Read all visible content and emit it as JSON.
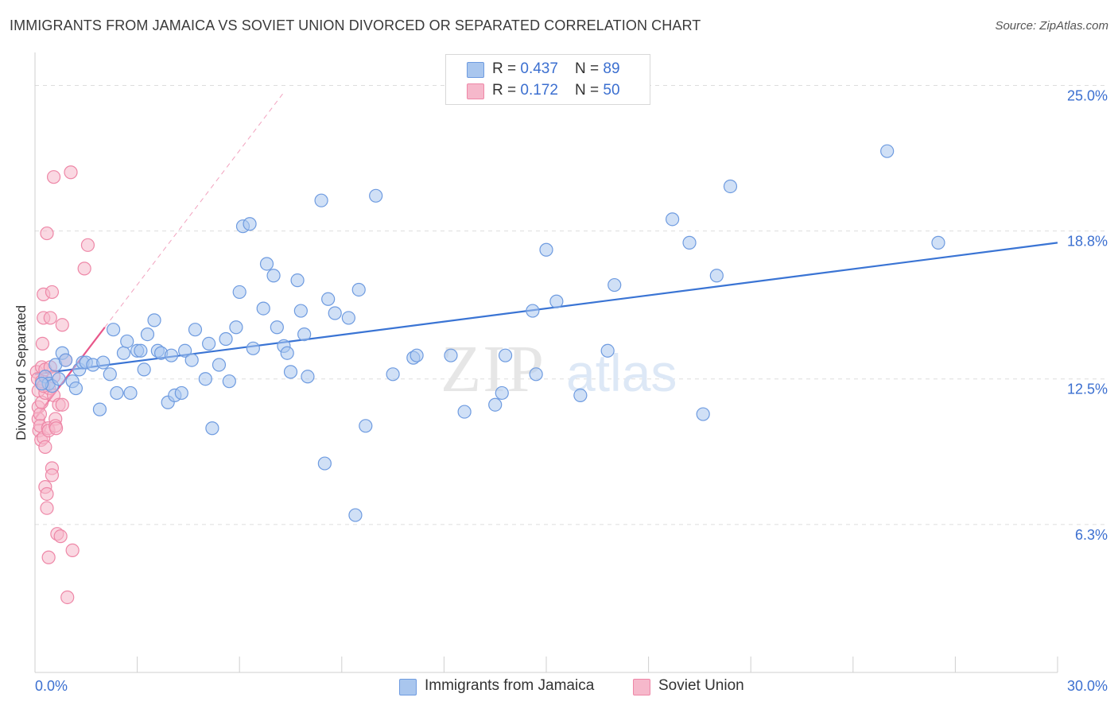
{
  "title": "IMMIGRANTS FROM JAMAICA VS SOVIET UNION DIVORCED OR SEPARATED CORRELATION CHART",
  "source": "Source: ZipAtlas.com",
  "watermark": {
    "zip": "ZIP",
    "atlas": "atlas"
  },
  "colors": {
    "blue_fill": "#a9c6ee",
    "blue_stroke": "#6e9be0",
    "blue_line": "#3a74d4",
    "pink_fill": "#f6b8cb",
    "pink_stroke": "#ee87a7",
    "pink_line": "#e8578a",
    "axis_label": "#3b6fd0",
    "grid": "#dddddd"
  },
  "legend": {
    "rows": [
      {
        "r_label": "R = ",
        "r_value": "0.437",
        "n_label": "N = ",
        "n_value": "89",
        "color": "#a9c6ee",
        "stroke": "#6e9be0"
      },
      {
        "r_label": "R = ",
        "r_value": "0.172",
        "n_label": "N = ",
        "n_value": "50",
        "color": "#f6b8cb",
        "stroke": "#ee87a7"
      }
    ]
  },
  "chart_data": {
    "type": "scatter",
    "title": "IMMIGRANTS FROM JAMAICA VS SOVIET UNION DIVORCED OR SEPARATED CORRELATION CHART",
    "xlabel": "",
    "ylabel": "Divorced or Separated",
    "xlim": [
      0,
      30
    ],
    "ylim": [
      0,
      26.2
    ],
    "x_tick_labels": [
      "0.0%",
      "30.0%"
    ],
    "y_ticks": [
      6.3,
      12.5,
      18.8,
      25.0
    ],
    "y_tick_labels": [
      "6.3%",
      "12.5%",
      "18.8%",
      "25.0%"
    ],
    "grid": "horizontal dashed",
    "legend_position": "top-center",
    "series": [
      {
        "name": "Immigrants from Jamaica",
        "color": "#a9c6ee",
        "points": [
          [
            0.3,
            12.6
          ],
          [
            0.4,
            12.3
          ],
          [
            0.5,
            12.2
          ],
          [
            0.6,
            13.1
          ],
          [
            0.7,
            12.5
          ],
          [
            0.8,
            13.6
          ],
          [
            0.9,
            13.3
          ],
          [
            1.1,
            12.4
          ],
          [
            1.2,
            12.1
          ],
          [
            1.3,
            12.9
          ],
          [
            1.4,
            13.2
          ],
          [
            1.5,
            13.2
          ],
          [
            1.7,
            13.1
          ],
          [
            1.9,
            11.2
          ],
          [
            2.0,
            13.2
          ],
          [
            2.2,
            12.7
          ],
          [
            2.3,
            14.6
          ],
          [
            2.4,
            11.9
          ],
          [
            2.6,
            13.6
          ],
          [
            2.7,
            14.1
          ],
          [
            2.8,
            11.9
          ],
          [
            3.0,
            13.7
          ],
          [
            3.1,
            13.7
          ],
          [
            3.2,
            12.9
          ],
          [
            3.3,
            14.4
          ],
          [
            3.5,
            15.0
          ],
          [
            3.6,
            13.7
          ],
          [
            3.7,
            13.6
          ],
          [
            3.9,
            11.5
          ],
          [
            4.0,
            13.5
          ],
          [
            4.1,
            11.8
          ],
          [
            4.3,
            11.9
          ],
          [
            4.4,
            13.7
          ],
          [
            4.6,
            13.3
          ],
          [
            4.7,
            14.6
          ],
          [
            5.0,
            12.5
          ],
          [
            5.1,
            14.0
          ],
          [
            5.2,
            10.4
          ],
          [
            5.4,
            13.1
          ],
          [
            5.6,
            14.2
          ],
          [
            5.7,
            12.4
          ],
          [
            5.9,
            14.7
          ],
          [
            6.0,
            16.2
          ],
          [
            6.1,
            19.0
          ],
          [
            6.3,
            19.1
          ],
          [
            6.4,
            13.8
          ],
          [
            6.7,
            15.5
          ],
          [
            6.8,
            17.4
          ],
          [
            7.0,
            16.9
          ],
          [
            7.1,
            14.7
          ],
          [
            7.3,
            13.9
          ],
          [
            7.4,
            13.6
          ],
          [
            7.5,
            12.8
          ],
          [
            7.7,
            16.7
          ],
          [
            7.8,
            15.4
          ],
          [
            7.9,
            14.4
          ],
          [
            8.0,
            12.6
          ],
          [
            8.4,
            20.1
          ],
          [
            8.5,
            8.9
          ],
          [
            8.6,
            15.9
          ],
          [
            8.8,
            15.3
          ],
          [
            9.2,
            15.1
          ],
          [
            9.4,
            6.7
          ],
          [
            9.5,
            16.3
          ],
          [
            9.7,
            10.5
          ],
          [
            10.0,
            20.3
          ],
          [
            10.5,
            12.7
          ],
          [
            11.1,
            13.4
          ],
          [
            11.2,
            13.5
          ],
          [
            12.2,
            13.5
          ],
          [
            12.6,
            11.1
          ],
          [
            13.5,
            11.4
          ],
          [
            13.7,
            11.9
          ],
          [
            13.8,
            13.5
          ],
          [
            14.6,
            15.4
          ],
          [
            14.7,
            12.7
          ],
          [
            15.0,
            18.0
          ],
          [
            15.3,
            15.8
          ],
          [
            16.0,
            11.8
          ],
          [
            16.8,
            13.7
          ],
          [
            17.0,
            16.5
          ],
          [
            18.7,
            19.3
          ],
          [
            19.2,
            18.3
          ],
          [
            19.6,
            11.0
          ],
          [
            20.0,
            16.9
          ],
          [
            20.4,
            20.7
          ],
          [
            25.0,
            22.2
          ],
          [
            26.5,
            18.3
          ],
          [
            0.2,
            12.3
          ]
        ]
      },
      {
        "name": "Soviet Union",
        "color": "#f6b8cb",
        "points": [
          [
            0.05,
            12.8
          ],
          [
            0.08,
            12.5
          ],
          [
            0.1,
            12.0
          ],
          [
            0.1,
            11.3
          ],
          [
            0.1,
            10.8
          ],
          [
            0.12,
            10.3
          ],
          [
            0.15,
            11.0
          ],
          [
            0.15,
            10.5
          ],
          [
            0.18,
            9.9
          ],
          [
            0.2,
            13.0
          ],
          [
            0.2,
            12.4
          ],
          [
            0.2,
            11.5
          ],
          [
            0.22,
            14.0
          ],
          [
            0.25,
            15.1
          ],
          [
            0.25,
            16.1
          ],
          [
            0.25,
            10.0
          ],
          [
            0.3,
            7.9
          ],
          [
            0.3,
            9.6
          ],
          [
            0.3,
            12.9
          ],
          [
            0.3,
            11.9
          ],
          [
            0.35,
            7.6
          ],
          [
            0.35,
            18.7
          ],
          [
            0.35,
            7.0
          ],
          [
            0.38,
            10.4
          ],
          [
            0.4,
            4.9
          ],
          [
            0.4,
            10.3
          ],
          [
            0.42,
            12.1
          ],
          [
            0.45,
            15.1
          ],
          [
            0.45,
            13.0
          ],
          [
            0.5,
            8.7
          ],
          [
            0.5,
            8.4
          ],
          [
            0.5,
            16.2
          ],
          [
            0.55,
            12.6
          ],
          [
            0.55,
            11.8
          ],
          [
            0.55,
            21.1
          ],
          [
            0.6,
            10.8
          ],
          [
            0.6,
            10.5
          ],
          [
            0.62,
            10.4
          ],
          [
            0.65,
            5.9
          ],
          [
            0.7,
            11.4
          ],
          [
            0.75,
            5.8
          ],
          [
            0.8,
            11.4
          ],
          [
            0.8,
            14.8
          ],
          [
            0.9,
            13.3
          ],
          [
            0.95,
            3.2
          ],
          [
            1.05,
            21.3
          ],
          [
            1.1,
            5.2
          ],
          [
            1.45,
            17.2
          ],
          [
            1.55,
            18.2
          ],
          [
            0.25,
            12.2
          ]
        ]
      }
    ],
    "trend_lines": [
      {
        "series": "Immigrants from Jamaica",
        "x": [
          0,
          30
        ],
        "y": [
          12.7,
          18.3
        ],
        "style": "solid"
      },
      {
        "series": "Soviet Union",
        "x": [
          0,
          2.05
        ],
        "y": [
          10.8,
          14.7
        ],
        "style": "solid"
      },
      {
        "series": "Soviet Union",
        "x": [
          2.05,
          7.3
        ],
        "y": [
          14.7,
          24.7
        ],
        "style": "dashed"
      }
    ]
  },
  "bottom_legend": {
    "items": [
      {
        "label": "Immigrants from Jamaica",
        "color": "#a9c6ee",
        "stroke": "#6e9be0"
      },
      {
        "label": "Soviet Union",
        "color": "#f6b8cb",
        "stroke": "#ee87a7"
      }
    ]
  }
}
